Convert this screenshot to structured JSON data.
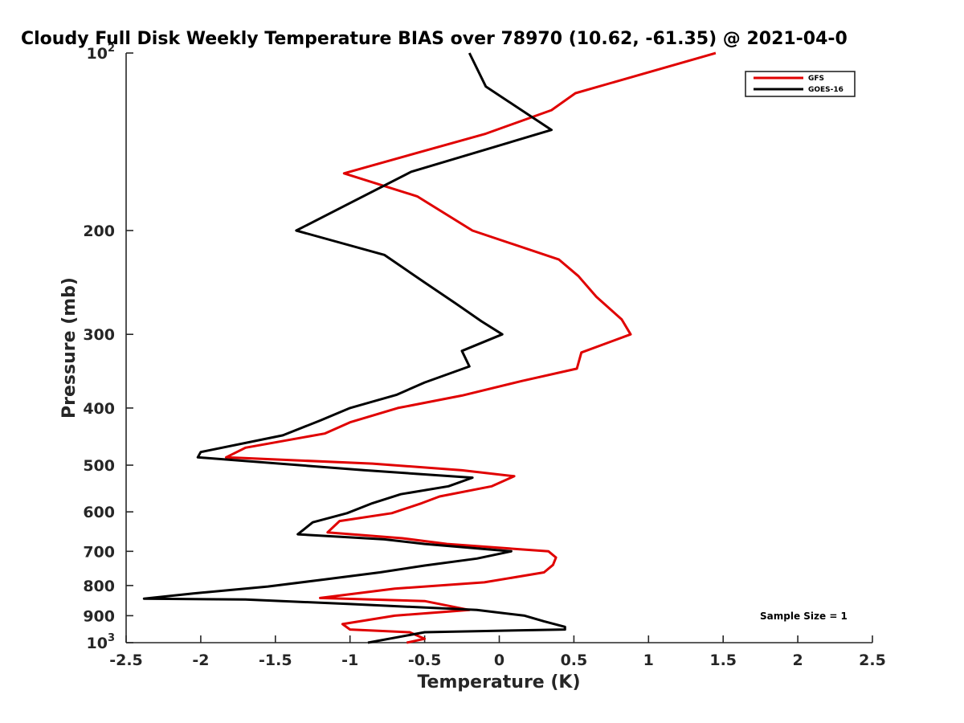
{
  "chart_data": {
    "type": "line",
    "title": "Cloudy Full Disk Weekly Temperature BIAS over 78970 (10.62, -61.35) @ 2021-04-0",
    "xlabel": "Temperature (K)",
    "ylabel": "Pressure (mb)",
    "xlim": [
      -2.5,
      2.5
    ],
    "ylim": [
      100,
      1000
    ],
    "y_scale": "log",
    "y_reversed": true,
    "x_ticks": [
      "-2.5",
      "-2",
      "-1.5",
      "-1",
      "-0.5",
      "0",
      "0.5",
      "1",
      "1.5",
      "2",
      "2.5"
    ],
    "y_ticks": [
      {
        "value": 100,
        "base": "10",
        "exp": "2"
      },
      {
        "value": 200,
        "base": "200",
        "exp": ""
      },
      {
        "value": 300,
        "base": "300",
        "exp": ""
      },
      {
        "value": 400,
        "base": "400",
        "exp": ""
      },
      {
        "value": 500,
        "base": "500",
        "exp": ""
      },
      {
        "value": 600,
        "base": "600",
        "exp": ""
      },
      {
        "value": 700,
        "base": "700",
        "exp": ""
      },
      {
        "value": 800,
        "base": "800",
        "exp": ""
      },
      {
        "value": 900,
        "base": "900",
        "exp": ""
      },
      {
        "value": 1000,
        "base": "10",
        "exp": "3"
      }
    ],
    "grid": false,
    "legend_position": "top-right",
    "annotation": "Sample Size = 1",
    "series": [
      {
        "name": "GFS",
        "color": "#e00000",
        "points": [
          [
            1.45,
            100
          ],
          [
            0.51,
            117
          ],
          [
            0.35,
            125
          ],
          [
            -0.09,
            137
          ],
          [
            -1.04,
            160
          ],
          [
            -0.55,
            175
          ],
          [
            -0.18,
            200
          ],
          [
            0.4,
            224
          ],
          [
            0.53,
            239
          ],
          [
            0.65,
            259
          ],
          [
            0.82,
            283
          ],
          [
            0.88,
            300
          ],
          [
            0.55,
            322
          ],
          [
            0.52,
            343
          ],
          [
            0.15,
            360
          ],
          [
            -0.25,
            381
          ],
          [
            -0.68,
            400
          ],
          [
            -1.0,
            423
          ],
          [
            -1.17,
            442
          ],
          [
            -1.7,
            467
          ],
          [
            -1.83,
            485
          ],
          [
            -0.85,
            497
          ],
          [
            -0.25,
            510
          ],
          [
            0.1,
            522
          ],
          [
            -0.05,
            543
          ],
          [
            -0.4,
            565
          ],
          [
            -0.52,
            580
          ],
          [
            -0.72,
            603
          ],
          [
            -1.07,
            622
          ],
          [
            -1.15,
            650
          ],
          [
            -0.65,
            665
          ],
          [
            -0.35,
            680
          ],
          [
            0.33,
            700
          ],
          [
            0.38,
            717
          ],
          [
            0.36,
            738
          ],
          [
            0.3,
            760
          ],
          [
            -0.1,
            790
          ],
          [
            -0.7,
            810
          ],
          [
            -1.2,
            840
          ],
          [
            -0.5,
            850
          ],
          [
            -0.2,
            880
          ],
          [
            -0.7,
            900
          ],
          [
            -1.05,
            930
          ],
          [
            -1.0,
            950
          ],
          [
            -0.6,
            960
          ],
          [
            -0.5,
            985
          ],
          [
            -0.62,
            1000
          ]
        ]
      },
      {
        "name": "GOES-16",
        "color": "#000000",
        "points": [
          [
            -0.2,
            100
          ],
          [
            -0.09,
            114
          ],
          [
            0.35,
            135
          ],
          [
            -0.59,
            159
          ],
          [
            -1.36,
            200
          ],
          [
            -0.77,
            220
          ],
          [
            -0.5,
            245
          ],
          [
            -0.3,
            265
          ],
          [
            -0.12,
            285
          ],
          [
            0.02,
            300
          ],
          [
            -0.25,
            320
          ],
          [
            -0.2,
            340
          ],
          [
            -0.5,
            362
          ],
          [
            -0.69,
            380
          ],
          [
            -1.0,
            400
          ],
          [
            -1.2,
            420
          ],
          [
            -1.45,
            445
          ],
          [
            -2.0,
            475
          ],
          [
            -2.02,
            485
          ],
          [
            -0.9,
            510
          ],
          [
            -0.18,
            525
          ],
          [
            -0.34,
            543
          ],
          [
            -0.66,
            560
          ],
          [
            -0.85,
            580
          ],
          [
            -1.02,
            603
          ],
          [
            -1.25,
            625
          ],
          [
            -1.35,
            655
          ],
          [
            -0.77,
            668
          ],
          [
            -0.5,
            680
          ],
          [
            0.08,
            700
          ],
          [
            -0.15,
            720
          ],
          [
            -0.5,
            740
          ],
          [
            -0.8,
            760
          ],
          [
            -1.2,
            783
          ],
          [
            -1.55,
            803
          ],
          [
            -2.05,
            825
          ],
          [
            -2.38,
            842
          ],
          [
            -1.7,
            845
          ],
          [
            -1.0,
            860
          ],
          [
            -0.15,
            880
          ],
          [
            0.17,
            900
          ],
          [
            0.3,
            920
          ],
          [
            0.44,
            940
          ],
          [
            0.44,
            950
          ],
          [
            -0.5,
            960
          ],
          [
            -0.88,
            1000
          ]
        ]
      }
    ]
  }
}
